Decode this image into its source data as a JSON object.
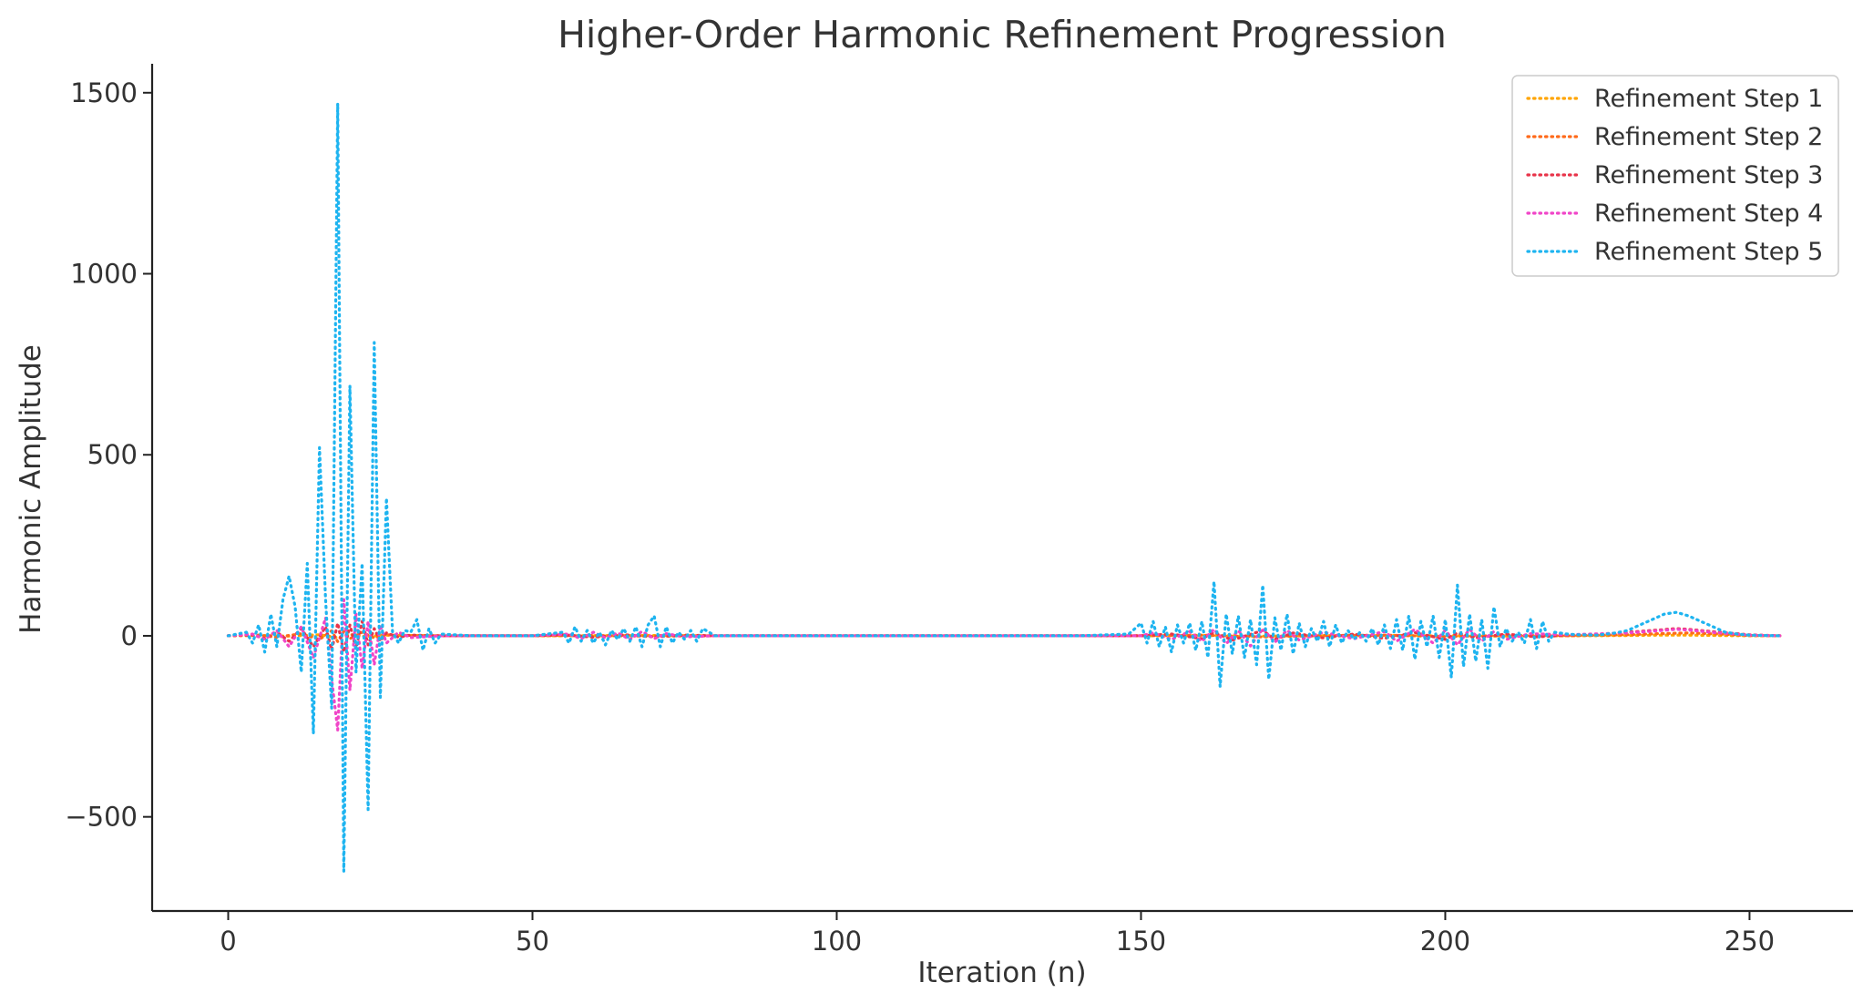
{
  "chart_data": {
    "type": "line",
    "title": "Higher-Order Harmonic Refinement Progression",
    "xlabel": "Iteration (n)",
    "ylabel": "Harmonic Amplitude",
    "xlim": [
      -12.5,
      267
    ],
    "ylim": [
      -760,
      1580
    ],
    "xticks": [
      0,
      50,
      100,
      150,
      200,
      250
    ],
    "yticks": [
      -500,
      0,
      500,
      1000,
      1500
    ],
    "xtick_labels": [
      "0",
      "50",
      "100",
      "150",
      "200",
      "250"
    ],
    "ytick_labels": [
      "−500",
      "0",
      "500",
      "1000",
      "1500"
    ],
    "grid": false,
    "legend_position": "top-right",
    "line_style": "dotted",
    "series": [
      {
        "name": "Refinement Step 1",
        "color": "#FFA500",
        "x": [
          0,
          5,
          10,
          15,
          18,
          20,
          23,
          25,
          30,
          35,
          40,
          50,
          60,
          70,
          80,
          100,
          120,
          150,
          160,
          170,
          180,
          190,
          200,
          210,
          220,
          230,
          235,
          240,
          245,
          250,
          255
        ],
        "y": [
          0,
          1,
          -1,
          3,
          -5,
          4,
          -3,
          2,
          1,
          0,
          0,
          0,
          0,
          1,
          0,
          0,
          0,
          0,
          1,
          -1,
          0,
          1,
          0,
          -1,
          0,
          1,
          2,
          2,
          1,
          0,
          0
        ]
      },
      {
        "name": "Refinement Step 2",
        "color": "#FF6A1A",
        "x": [
          0,
          5,
          8,
          12,
          15,
          17,
          18,
          19,
          20,
          22,
          24,
          26,
          30,
          35,
          50,
          60,
          70,
          80,
          100,
          150,
          160,
          170,
          180,
          190,
          200,
          210,
          220,
          230,
          235,
          240,
          245,
          250,
          255
        ],
        "y": [
          0,
          2,
          -4,
          6,
          -10,
          14,
          -16,
          12,
          -8,
          10,
          -6,
          3,
          1,
          0,
          0,
          1,
          -1,
          0,
          0,
          0,
          2,
          -3,
          1,
          2,
          -2,
          1,
          0,
          3,
          6,
          8,
          5,
          1,
          0
        ]
      },
      {
        "name": "Refinement Step 3",
        "color": "#E8344A",
        "x": [
          0,
          4,
          6,
          8,
          10,
          12,
          14,
          16,
          17,
          18,
          19,
          20,
          21,
          22,
          23,
          24,
          25,
          26,
          28,
          30,
          35,
          50,
          55,
          60,
          65,
          70,
          75,
          80,
          100,
          150,
          155,
          160,
          162,
          165,
          170,
          172,
          175,
          180,
          185,
          190,
          195,
          200,
          202,
          205,
          210,
          215,
          220,
          225,
          230,
          235,
          238,
          240,
          245,
          250,
          255
        ],
        "y": [
          0,
          3,
          -8,
          10,
          -15,
          20,
          -30,
          25,
          -40,
          35,
          -45,
          30,
          -35,
          40,
          -25,
          20,
          -15,
          8,
          -4,
          2,
          0,
          0,
          3,
          -4,
          3,
          -3,
          2,
          0,
          0,
          0,
          5,
          -8,
          10,
          -12,
          15,
          -10,
          8,
          -6,
          5,
          -7,
          9,
          -10,
          8,
          -6,
          5,
          -3,
          2,
          4,
          10,
          16,
          20,
          18,
          10,
          3,
          0
        ]
      },
      {
        "name": "Refinement Step 4",
        "color": "#F045C8",
        "x": [
          0,
          4,
          6,
          8,
          10,
          12,
          14,
          16,
          17,
          18,
          19,
          20,
          21,
          22,
          23,
          24,
          25,
          26,
          28,
          30,
          35,
          50,
          56,
          58,
          60,
          62,
          64,
          66,
          68,
          70,
          72,
          75,
          80,
          100,
          150,
          152,
          155,
          158,
          160,
          162,
          164,
          166,
          168,
          170,
          172,
          174,
          176,
          180,
          185,
          190,
          192,
          195,
          198,
          200,
          202,
          204,
          206,
          208,
          210,
          214,
          220,
          230,
          235,
          238,
          240,
          245,
          250,
          255
        ],
        "y": [
          0,
          5,
          -10,
          15,
          -30,
          25,
          -60,
          50,
          -120,
          -260,
          100,
          -150,
          60,
          -90,
          40,
          -80,
          30,
          -20,
          10,
          -5,
          0,
          0,
          5,
          -8,
          10,
          -6,
          8,
          -10,
          12,
          -8,
          6,
          -3,
          0,
          0,
          0,
          8,
          -10,
          12,
          -15,
          18,
          -22,
          15,
          -28,
          20,
          -18,
          15,
          -12,
          10,
          -8,
          12,
          -15,
          18,
          -20,
          15,
          -25,
          18,
          -15,
          12,
          -10,
          6,
          3,
          8,
          14,
          18,
          16,
          8,
          2,
          0
        ]
      },
      {
        "name": "Refinement Step 5",
        "color": "#1EB4F0",
        "x": [
          0,
          3,
          4,
          5,
          6,
          7,
          8,
          9,
          10,
          11,
          12,
          13,
          14,
          15,
          16,
          17,
          18,
          19,
          20,
          21,
          22,
          23,
          24,
          25,
          26,
          27,
          28,
          29,
          30,
          31,
          32,
          33,
          34,
          35,
          40,
          50,
          55,
          56,
          57,
          58,
          59,
          60,
          61,
          62,
          63,
          64,
          65,
          66,
          67,
          68,
          69,
          70,
          71,
          72,
          73,
          74,
          75,
          76,
          77,
          78,
          80,
          100,
          140,
          148,
          150,
          151,
          152,
          153,
          154,
          155,
          156,
          157,
          158,
          159,
          160,
          161,
          162,
          163,
          164,
          165,
          166,
          167,
          168,
          169,
          170,
          171,
          172,
          173,
          174,
          175,
          176,
          177,
          178,
          179,
          180,
          181,
          182,
          183,
          184,
          185,
          186,
          187,
          188,
          189,
          190,
          191,
          192,
          193,
          194,
          195,
          196,
          197,
          198,
          199,
          200,
          201,
          202,
          203,
          204,
          205,
          206,
          207,
          208,
          209,
          210,
          211,
          212,
          213,
          214,
          215,
          216,
          217,
          218,
          220,
          222,
          225,
          228,
          230,
          232,
          234,
          236,
          238,
          240,
          242,
          244,
          246,
          248,
          250,
          255
        ],
        "y": [
          0,
          10,
          -20,
          30,
          -45,
          60,
          -30,
          100,
          165,
          80,
          -100,
          200,
          -270,
          520,
          100,
          -200,
          1470,
          -650,
          690,
          -100,
          200,
          -480,
          810,
          -170,
          380,
          10,
          -20,
          15,
          10,
          45,
          -40,
          20,
          -20,
          5,
          0,
          0,
          10,
          -20,
          25,
          -15,
          15,
          -20,
          10,
          -25,
          15,
          -10,
          20,
          -15,
          25,
          -30,
          30,
          55,
          -30,
          25,
          -20,
          10,
          -10,
          15,
          -15,
          20,
          0,
          0,
          0,
          5,
          35,
          -20,
          40,
          -30,
          25,
          -45,
          30,
          -20,
          35,
          -40,
          40,
          -60,
          150,
          -140,
          60,
          -50,
          55,
          -60,
          45,
          -80,
          140,
          -120,
          50,
          -40,
          60,
          -50,
          35,
          -30,
          20,
          -15,
          40,
          -30,
          30,
          -20,
          15,
          -10,
          10,
          -15,
          20,
          -25,
          30,
          -35,
          45,
          -40,
          55,
          -65,
          40,
          -30,
          55,
          -60,
          45,
          -115,
          140,
          -85,
          60,
          -70,
          45,
          -90,
          80,
          -30,
          20,
          -15,
          10,
          -20,
          45,
          -35,
          40,
          -15,
          10,
          5,
          3,
          2,
          8,
          15,
          30,
          45,
          60,
          65,
          55,
          40,
          25,
          10,
          5,
          2,
          0
        ]
      }
    ]
  }
}
